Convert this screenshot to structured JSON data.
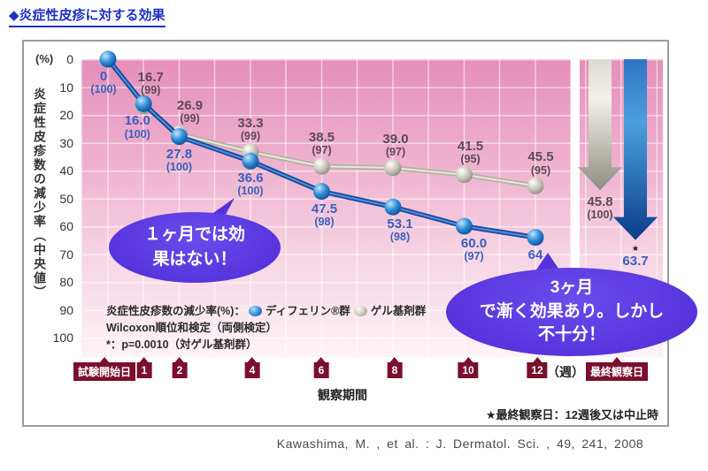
{
  "page": {
    "title": "◆炎症性皮疹に対する効果",
    "citation": "Kawashima, M. , et al. : J. Dermatol. Sci. , 49, 241, 2008"
  },
  "chart": {
    "percent_label": "(%)",
    "y_axis_title": "炎症性皮疹数の減少率（中央値）",
    "y_ticks": [
      0,
      10,
      20,
      30,
      40,
      50,
      60,
      70,
      80,
      90,
      100
    ],
    "x_tags": [
      "試験開始日",
      "1",
      "2",
      "4",
      "6",
      "8",
      "10",
      "12",
      "最終観察日"
    ],
    "week_unit": "（週）",
    "x_axis_label": "観察期間",
    "footnote": "★最終観察日：12週後又は中止時",
    "legend": {
      "prefix": "炎症性皮疹数の減少率(%)：",
      "stat_line": "Wilcoxon順位和検定（両側検定）",
      "p_line": "*：p=0.0010（対ゲル基剤群）"
    }
  },
  "chart_data": {
    "type": "line",
    "title": "炎症性皮疹に対する効果",
    "ylabel": "炎症性皮疹数の減少率（中央値）(%)",
    "ylim": [
      0,
      100
    ],
    "y_inverted": true,
    "x_weeks": [
      0,
      1,
      2,
      4,
      6,
      8,
      10,
      12
    ],
    "final_column_label": "最終観察日",
    "series": [
      {
        "name": "ディフェリン®群",
        "color": "#17479f",
        "values": [
          0,
          16.0,
          27.8,
          36.6,
          47.5,
          53.1,
          60.0,
          64
        ],
        "labels": [
          "0",
          "16.0",
          "27.8",
          "36.6",
          "47.5",
          "53.1",
          "60.0",
          "64"
        ],
        "n": [
          100,
          100,
          100,
          100,
          98,
          98,
          97,
          null
        ],
        "final": {
          "value": 63.7,
          "label": "63.7",
          "n_label": null,
          "marker": "*"
        }
      },
      {
        "name": "ゲル基剤群",
        "color": "#b4b1a4",
        "values": [
          0,
          16.7,
          26.9,
          33.3,
          38.5,
          39.0,
          41.5,
          45.5
        ],
        "labels": [
          null,
          "16.7",
          "26.9",
          "33.3",
          "38.5",
          "39.0",
          "41.5",
          "45.5"
        ],
        "n": [
          null,
          99,
          99,
          99,
          97,
          97,
          95,
          95
        ],
        "final": {
          "value": 45.8,
          "label": "45.8",
          "n_label": "(100)",
          "marker": null
        }
      }
    ]
  },
  "bubbles": [
    {
      "lines": [
        "１ヶ月では効",
        "果はない！"
      ]
    },
    {
      "lines": [
        "3ヶ月",
        "で漸く効果あり。しかし",
        "不十分！"
      ]
    }
  ]
}
